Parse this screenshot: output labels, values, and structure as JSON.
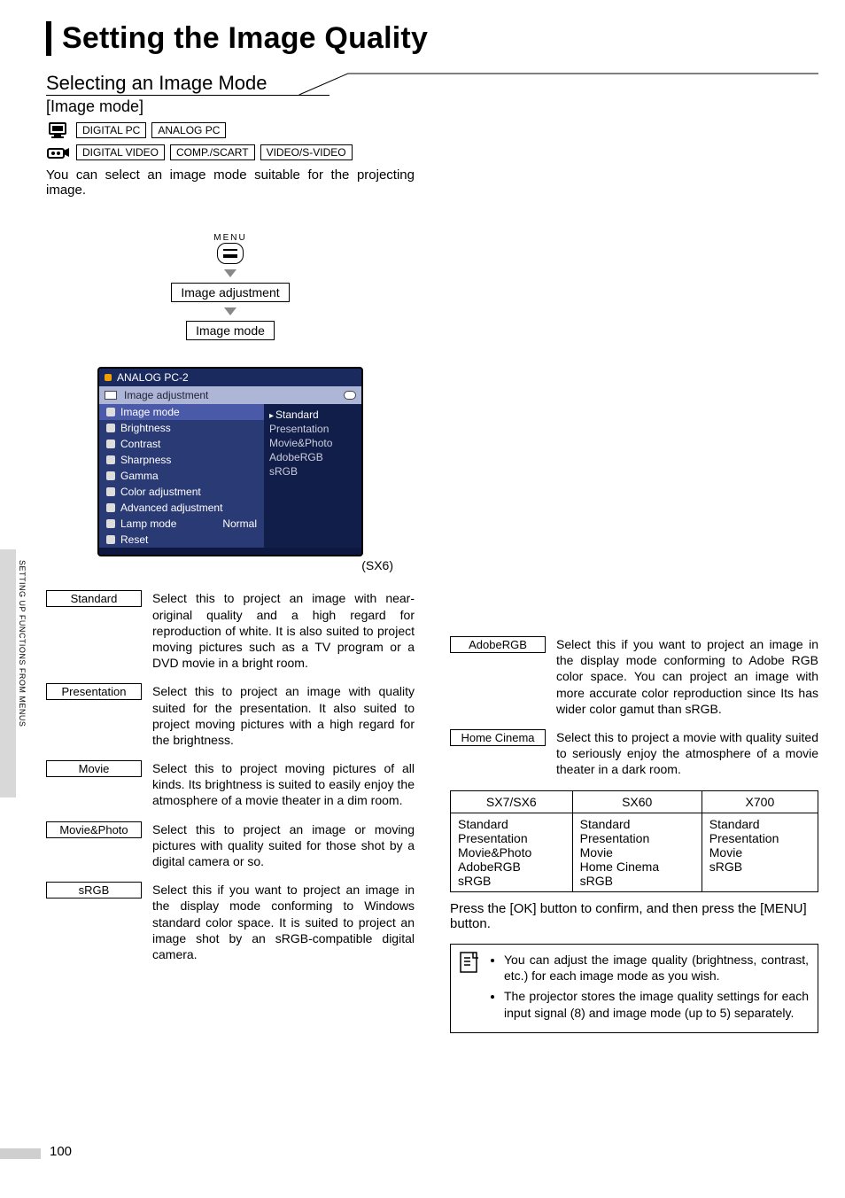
{
  "page": {
    "title": "Setting the Image Quality",
    "section_heading": "Selecting an Image Mode",
    "section_sub": "[Image mode]",
    "intro": "You can select an image mode suitable for the projecting image.",
    "page_number": "100",
    "side_tab": "SETTING UP FUNCTIONS FROM MENUS"
  },
  "inputs": {
    "pc_row": [
      "DIGITAL PC",
      "ANALOG PC"
    ],
    "video_row": [
      "DIGITAL VIDEO",
      "COMP./SCART",
      "VIDEO/S-VIDEO"
    ]
  },
  "nav": {
    "menu_label": "MENU",
    "step1": "Image adjustment",
    "step2": "Image mode"
  },
  "osd": {
    "title": "ANALOG PC-2",
    "tab_label": "Image adjustment",
    "left_items": [
      "Image mode",
      "Brightness",
      "Contrast",
      "Sharpness",
      "Gamma",
      "Color adjustment",
      "Advanced adjustment",
      "Lamp mode",
      "Reset"
    ],
    "right_options": [
      "Standard",
      "Presentation",
      "Movie&Photo",
      "AdobeRGB",
      "sRGB"
    ],
    "lamp_value": "Normal",
    "caption": "(SX6)"
  },
  "modes_left": [
    {
      "label": "Standard",
      "text": "Select this to project an image with near-original quality and a high regard for reproduction of white. It is also suited to project moving pictures such as a TV program or a DVD movie in a bright room."
    },
    {
      "label": "Presentation",
      "text": "Select this to project an image with quality suited for the presentation. It also suited to project moving pictures with a high regard for the brightness."
    },
    {
      "label": "Movie",
      "text": "Select this to project moving pictures of all kinds. Its brightness is suited to easily enjoy the atmosphere of a movie theater in a dim room."
    },
    {
      "label": "Movie&Photo",
      "text": "Select this to project an image or moving pictures with quality suited for those shot by a digital camera or so."
    },
    {
      "label": "sRGB",
      "text": "Select this if you want to project an image in the display mode conforming to Windows standard color space. It is suited to project an image shot by an sRGB-compatible digital camera."
    }
  ],
  "modes_right": [
    {
      "label": "AdobeRGB",
      "text": "Select this if you want to project an image in the display mode conforming to Adobe RGB color space. You can project an image with more accurate color reproduction since Its has wider color gamut than sRGB."
    },
    {
      "label": "Home Cinema",
      "text": "Select this to project a movie with quality suited to seriously enjoy the atmosphere of a movie theater in a dark room."
    }
  ],
  "model_table": {
    "headers": [
      "SX7/SX6",
      "SX60",
      "X700"
    ],
    "cols": [
      [
        "Standard",
        "Presentation",
        "Movie&Photo",
        "AdobeRGB",
        "sRGB"
      ],
      [
        "Standard",
        "Presentation",
        "Movie",
        "Home Cinema",
        "sRGB"
      ],
      [
        "Standard",
        "Presentation",
        "Movie",
        "sRGB"
      ]
    ]
  },
  "press_note": "Press the [OK] button to confirm, and then press the [MENU] button.",
  "tips": [
    "You can adjust the image quality (brightness, contrast, etc.) for each image mode as you wish.",
    "The projector stores the image quality settings for each input signal (8) and image mode (up to 5) separately."
  ],
  "colors": {
    "osd_bg": "#2a3a74",
    "osd_header": "#1b2a5e",
    "osd_tabs": "#aeb6d8",
    "osd_right_bg": "#111e4a",
    "side_tab_bg": "#d8d8d8",
    "arrow": "#888888"
  }
}
